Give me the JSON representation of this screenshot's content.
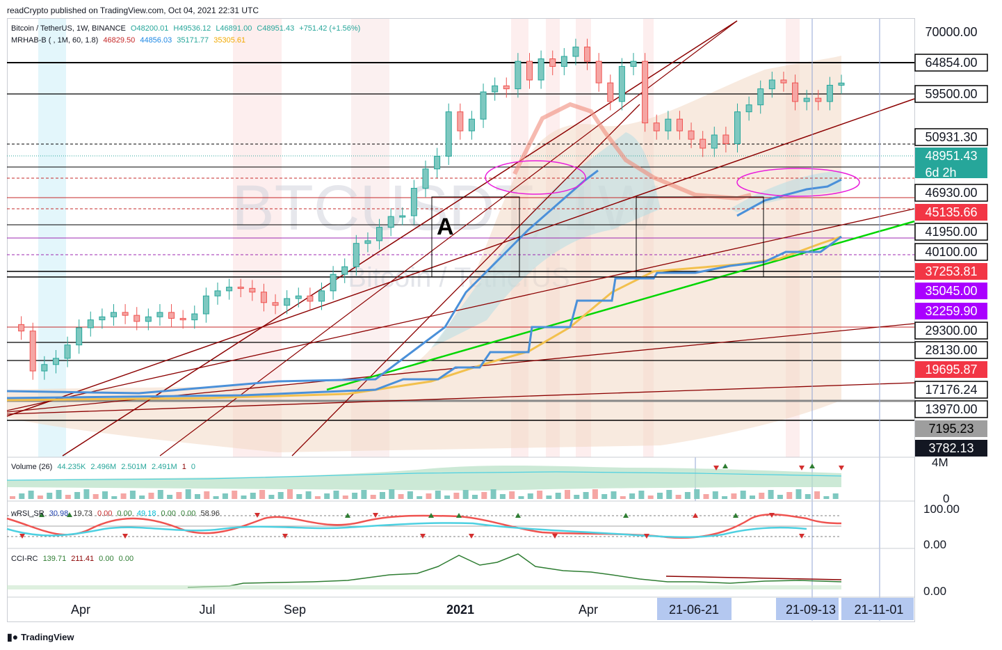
{
  "header": {
    "published": "readCrypto published on TradingView.com, Oct 04, 2021 22:31 UTC"
  },
  "legend": {
    "symbol": "Bitcoin / TetherUS, 1W, BINANCE",
    "ohlc": [
      "O48200.01",
      "H49536.12",
      "L46891.00",
      "C48951.43",
      "+751.42 (+1.56%)"
    ],
    "indicator_name": "MRHAB-B ( , 1M, 60, 1.8)",
    "indicator_values": [
      "46829.50",
      "44856.03",
      "35171.77",
      "35305.61"
    ],
    "volume": {
      "name": "Volume (26)",
      "values": [
        "44.235K",
        "2.496M",
        "2.501M",
        "2.491M",
        "1",
        "0"
      ]
    },
    "wrsi": {
      "name": "wRSI_SR",
      "values": [
        "30.98",
        "19.73",
        "0.00",
        "0.00",
        "49.18",
        "0.00",
        "0.00",
        "58.96"
      ]
    },
    "cci": {
      "name": "CCI-RC",
      "values": [
        "139.71",
        "211.41",
        "0.00",
        "0.00"
      ]
    }
  },
  "watermark": {
    "ticker": "BTCUSDT, 1W",
    "name": "Bitcoin / TetherUS"
  },
  "annotation_letter": "A",
  "colors": {
    "up": "#26a69a",
    "down": "#ef5350",
    "dark_red": "#8b0000",
    "green_line": "#00e600",
    "blue_line": "#4a90d9",
    "yellow_line": "#f2c04d",
    "magenta": "#e91edb",
    "purple": "#9c27b0"
  },
  "chart_data": {
    "type": "candlestick",
    "timeframe": "1W",
    "x_ticks": [
      "Apr",
      "Jul",
      "Sep",
      "2021",
      "Apr"
    ],
    "x_highlight_labels": [
      "21-06-21",
      "21-09-13",
      "21-11-01"
    ],
    "y_scale": "log",
    "ylim": [
      3782,
      72000
    ],
    "price_levels": [
      {
        "value": 70000.0,
        "label": "70000.00",
        "style": "plain"
      },
      {
        "value": 64854.0,
        "label": "64854.00",
        "style": "boxed-white"
      },
      {
        "value": 59500.0,
        "label": "59500.00",
        "style": "boxed-white"
      },
      {
        "value": 50931.3,
        "label": "50931.30",
        "style": "boxed-white"
      },
      {
        "value": 48951.43,
        "label": "48951.43",
        "sub": "6d 2h",
        "style": "current"
      },
      {
        "value": 46930.0,
        "label": "46930.00",
        "style": "boxed-white"
      },
      {
        "value": 45135.66,
        "label": "45135.66",
        "style": "red"
      },
      {
        "value": 41950.0,
        "label": "41950.00",
        "style": "boxed-white"
      },
      {
        "value": 40100.0,
        "label": "40100.00",
        "style": "boxed-white"
      },
      {
        "value": 37253.81,
        "label": "37253.81",
        "style": "red"
      },
      {
        "value": 35045.0,
        "label": "35045.00",
        "style": "purple"
      },
      {
        "value": 32259.9,
        "label": "32259.90",
        "style": "purple"
      },
      {
        "value": 29300.0,
        "label": "29300.00",
        "style": "boxed-white"
      },
      {
        "value": 28130.0,
        "label": "28130.00",
        "style": "boxed-white"
      },
      {
        "value": 19695.87,
        "label": "19695.87",
        "style": "red"
      },
      {
        "value": 17176.24,
        "label": "17176.24",
        "style": "boxed-white"
      },
      {
        "value": 13970.0,
        "label": "13970.00",
        "style": "boxed-white"
      },
      {
        "value": 7195.23,
        "label": "7195.23",
        "style": "gray"
      },
      {
        "value": 3782.13,
        "label": "3782.13",
        "style": "dark"
      }
    ],
    "series": [
      {
        "name": "BTCUSDT 1W",
        "note": "weekly candles Mar 2020 - Oct 2021"
      }
    ],
    "volume_axis": [
      "4M",
      "0"
    ],
    "wrsi_axis": [
      "100.00",
      "0.00"
    ],
    "cci_axis": [
      "0.00"
    ]
  },
  "footer": {
    "brand": "TradingView"
  }
}
